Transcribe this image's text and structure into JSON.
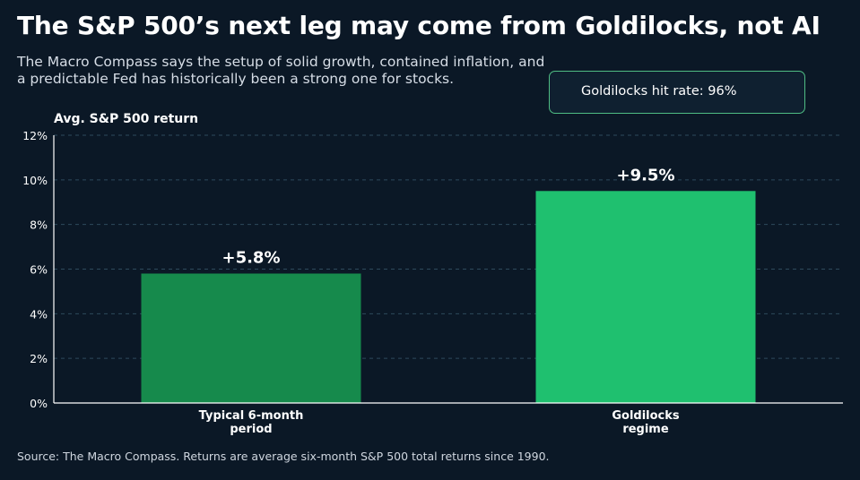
{
  "title": "The S&P 500’s next leg may come from Goldilocks, not AI",
  "subtitle": "The Macro Compass says the setup of solid growth, contained inflation, and a predictable Fed has historically been a strong one for stocks.",
  "callout": "Goldilocks hit rate: 96%",
  "source": "Source: The Macro Compass. Returns are average six-month S&P 500 total returns since 1990.",
  "chart_data": {
    "type": "bar",
    "title": "",
    "ylabel": "Avg. S&P 500 return",
    "xlabel": "",
    "ylim": [
      0,
      12
    ],
    "yticks": [
      0,
      2,
      4,
      6,
      8,
      10,
      12
    ],
    "ytick_labels": [
      "0%",
      "2%",
      "4%",
      "6%",
      "8%",
      "10%",
      "12%"
    ],
    "grid": true,
    "categories": [
      [
        "Typical 6-month",
        "period"
      ],
      [
        "Goldilocks",
        "regime"
      ]
    ],
    "values": [
      5.8,
      9.5
    ],
    "data_labels": [
      "+5.8%",
      "+9.5%"
    ],
    "colors": [
      "#168a4c",
      "#1fc06f"
    ]
  }
}
